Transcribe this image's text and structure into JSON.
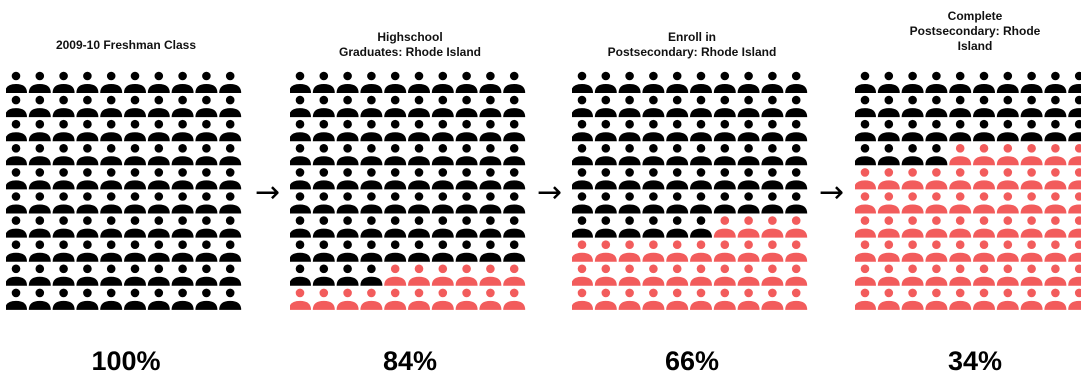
{
  "chart_data": {
    "type": "pictograph",
    "unit_icon": "person-icon",
    "icons_per_panel": 100,
    "colors": {
      "remaining": "#000000",
      "lost": "#f25c5c"
    },
    "panels": [
      {
        "title": "2009-10 Freshman Class",
        "percent_label": "100%",
        "value": 100
      },
      {
        "title": "Highschool\nGraduates: Rhode Island",
        "percent_label": "84%",
        "value": 84
      },
      {
        "title": "Enroll in\nPostsecondary: Rhode Island",
        "percent_label": "66%",
        "value": 66
      },
      {
        "title": "Complete\nPostsecondary: Rhode\nIsland",
        "percent_label": "34%",
        "value": 34
      }
    ],
    "arrow_glyph": "→"
  }
}
